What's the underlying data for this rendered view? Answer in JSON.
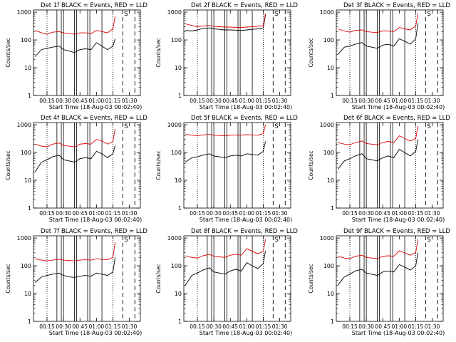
{
  "colors": {
    "events": "#000000",
    "lld": "#dd0000",
    "axes": "#000000"
  },
  "common": {
    "xlabel": "Start Time (18-Aug-03 00:02:40)",
    "ylabel": "Counts/sec",
    "x_tick_labels": [
      "00:15",
      "00:30",
      "00:45",
      "01:00",
      "01:15",
      "01:30"
    ],
    "y_tick_labels": [
      "1",
      "10",
      "100",
      "1000"
    ],
    "corner_label": "S"
  },
  "chart_data": [
    {
      "type": "line",
      "title": "Det 1f BLACK = Events, RED = LLD",
      "yscale": "log",
      "ylim": [
        1,
        1200
      ],
      "xlim": [
        "00:02:40",
        "01:40:00"
      ],
      "x": [
        "00:04",
        "00:10",
        "00:15",
        "00:20",
        "00:26",
        "00:30",
        "00:35",
        "00:40",
        "00:45",
        "00:50",
        "00:55",
        "01:00",
        "01:05",
        "01:10",
        "01:15",
        "01:17"
      ],
      "series": [
        {
          "name": "BLACK = Events",
          "values": [
            25,
            45,
            50,
            55,
            60,
            45,
            40,
            35,
            45,
            48,
            45,
            80,
            60,
            45,
            60,
            110
          ]
        },
        {
          "name": "RED = LLD",
          "values": [
            220,
            180,
            160,
            190,
            200,
            180,
            170,
            160,
            180,
            180,
            170,
            220,
            200,
            180,
            250,
            700
          ]
        }
      ],
      "dotted_lines_at": [
        "00:15",
        "01:15"
      ],
      "solid_lines_at": [
        "00:24",
        "00:28",
        "00:30",
        "00:40",
        "00:42",
        "00:52",
        "00:54",
        "01:05"
      ],
      "dashed_lines_at": [
        "01:24",
        "01:35"
      ]
    },
    {
      "type": "line",
      "title": "Det 2f BLACK = Events, RED = LLD",
      "yscale": "log",
      "ylim": [
        1,
        1200
      ],
      "xlim": [
        "00:02:40",
        "01:40:00"
      ],
      "x": [
        "00:04",
        "00:10",
        "00:15",
        "00:20",
        "00:26",
        "00:30",
        "00:35",
        "00:40",
        "00:45",
        "00:50",
        "00:55",
        "01:00",
        "01:05",
        "01:10",
        "01:15",
        "01:17"
      ],
      "series": [
        {
          "name": "BLACK = Events",
          "values": [
            220,
            210,
            230,
            260,
            270,
            250,
            240,
            230,
            230,
            225,
            220,
            230,
            240,
            250,
            270,
            800
          ]
        },
        {
          "name": "RED = LLD",
          "values": [
            380,
            330,
            300,
            320,
            330,
            310,
            300,
            290,
            290,
            280,
            280,
            290,
            300,
            310,
            330,
            900
          ]
        }
      ],
      "dotted_lines_at": [
        "00:15",
        "01:15"
      ],
      "solid_lines_at": [
        "00:24",
        "00:28",
        "00:30",
        "00:40",
        "00:42",
        "00:52",
        "00:54",
        "01:05"
      ],
      "dashed_lines_at": [
        "01:24",
        "01:35"
      ]
    },
    {
      "type": "line",
      "title": "Det 3f BLACK = Events, RED = LLD",
      "yscale": "log",
      "ylim": [
        1,
        1200
      ],
      "xlim": [
        "00:02:40",
        "01:40:00"
      ],
      "x": [
        "00:04",
        "00:10",
        "00:15",
        "00:20",
        "00:26",
        "00:30",
        "00:35",
        "00:40",
        "00:45",
        "00:50",
        "00:55",
        "01:00",
        "01:05",
        "01:10",
        "01:15",
        "01:17"
      ],
      "series": [
        {
          "name": "BLACK = Events",
          "values": [
            30,
            55,
            60,
            70,
            80,
            60,
            55,
            50,
            65,
            70,
            60,
            110,
            90,
            70,
            110,
            400
          ]
        },
        {
          "name": "RED = LLD",
          "values": [
            250,
            210,
            190,
            220,
            230,
            200,
            190,
            185,
            210,
            210,
            200,
            280,
            250,
            230,
            320,
            900
          ]
        }
      ],
      "dotted_lines_at": [
        "00:15",
        "01:15"
      ],
      "solid_lines_at": [
        "00:24",
        "00:28",
        "00:30",
        "00:40",
        "00:42",
        "00:52",
        "00:54",
        "01:05"
      ],
      "dashed_lines_at": [
        "01:24",
        "01:35"
      ]
    },
    {
      "type": "line",
      "title": "Det 4f BLACK = Events, RED = LLD",
      "yscale": "log",
      "ylim": [
        1,
        1200
      ],
      "xlim": [
        "00:02:40",
        "01:40:00"
      ],
      "x": [
        "00:04",
        "00:10",
        "00:15",
        "00:20",
        "00:26",
        "00:30",
        "00:35",
        "00:40",
        "00:45",
        "00:50",
        "00:55",
        "01:00",
        "01:05",
        "01:10",
        "01:15",
        "01:17"
      ],
      "series": [
        {
          "name": "BLACK = Events",
          "values": [
            20,
            45,
            55,
            70,
            80,
            55,
            50,
            45,
            60,
            65,
            60,
            110,
            90,
            65,
            90,
            180
          ]
        },
        {
          "name": "RED = LLD",
          "values": [
            200,
            170,
            160,
            200,
            220,
            180,
            170,
            160,
            200,
            210,
            200,
            300,
            260,
            200,
            250,
            700
          ]
        }
      ],
      "dotted_lines_at": [
        "00:15",
        "01:15"
      ],
      "solid_lines_at": [
        "00:24",
        "00:28",
        "00:30",
        "00:40",
        "00:42",
        "00:52",
        "00:54",
        "01:05"
      ],
      "dashed_lines_at": [
        "01:24",
        "01:35"
      ]
    },
    {
      "type": "line",
      "title": "Det 5f BLACK = Events, RED = LLD",
      "yscale": "log",
      "ylim": [
        1,
        1200
      ],
      "xlim": [
        "00:02:40",
        "01:40:00"
      ],
      "x": [
        "00:04",
        "00:10",
        "00:15",
        "00:20",
        "00:26",
        "00:30",
        "00:35",
        "00:40",
        "00:45",
        "00:50",
        "00:55",
        "01:00",
        "01:05",
        "01:10",
        "01:15",
        "01:17"
      ],
      "series": [
        {
          "name": "BLACK = Events",
          "values": [
            45,
            65,
            70,
            80,
            90,
            75,
            70,
            65,
            75,
            80,
            75,
            90,
            85,
            80,
            110,
            250
          ]
        },
        {
          "name": "RED = LLD",
          "values": [
            450,
            420,
            400,
            430,
            450,
            420,
            410,
            400,
            420,
            430,
            420,
            440,
            430,
            420,
            480,
            1000
          ]
        }
      ],
      "dotted_lines_at": [
        "00:15",
        "01:15"
      ],
      "solid_lines_at": [
        "00:24",
        "00:28",
        "00:30",
        "00:40",
        "00:42",
        "00:52",
        "00:54",
        "01:05"
      ],
      "dashed_lines_at": [
        "01:24",
        "01:35"
      ]
    },
    {
      "type": "line",
      "title": "Det 6f BLACK = Events, RED = LLD",
      "yscale": "log",
      "ylim": [
        1,
        1200
      ],
      "xlim": [
        "00:02:40",
        "01:40:00"
      ],
      "x": [
        "00:04",
        "00:10",
        "00:15",
        "00:20",
        "00:26",
        "00:30",
        "00:35",
        "00:40",
        "00:45",
        "00:50",
        "00:55",
        "01:00",
        "01:05",
        "01:10",
        "01:15",
        "01:17"
      ],
      "series": [
        {
          "name": "BLACK = Events",
          "values": [
            25,
            50,
            60,
            75,
            90,
            60,
            55,
            50,
            65,
            75,
            65,
            130,
            100,
            75,
            110,
            300
          ]
        },
        {
          "name": "RED = LLD",
          "values": [
            230,
            200,
            190,
            230,
            260,
            210,
            200,
            190,
            230,
            250,
            230,
            400,
            320,
            260,
            320,
            900
          ]
        }
      ],
      "dotted_lines_at": [
        "00:15",
        "01:15"
      ],
      "solid_lines_at": [
        "00:24",
        "00:28",
        "00:30",
        "00:40",
        "00:42",
        "00:52",
        "00:54",
        "01:05"
      ],
      "dashed_lines_at": [
        "01:24",
        "01:35"
      ]
    },
    {
      "type": "line",
      "title": "Det 7f BLACK = Events, RED = LLD",
      "yscale": "log",
      "ylim": [
        1,
        1200
      ],
      "xlim": [
        "00:02:40",
        "01:40:00"
      ],
      "x": [
        "00:04",
        "00:10",
        "00:15",
        "00:20",
        "00:26",
        "00:30",
        "00:35",
        "00:40",
        "00:45",
        "00:50",
        "00:55",
        "01:00",
        "01:05",
        "01:10",
        "01:15",
        "01:17"
      ],
      "series": [
        {
          "name": "BLACK = Events",
          "values": [
            25,
            40,
            45,
            50,
            55,
            45,
            40,
            38,
            42,
            45,
            42,
            55,
            50,
            45,
            60,
            200
          ]
        },
        {
          "name": "RED = LLD",
          "values": [
            180,
            160,
            150,
            160,
            170,
            160,
            155,
            150,
            160,
            165,
            160,
            180,
            170,
            165,
            200,
            700
          ]
        }
      ],
      "dotted_lines_at": [
        "00:15",
        "01:15"
      ],
      "solid_lines_at": [
        "00:24",
        "00:28",
        "00:30",
        "00:40",
        "00:42",
        "00:52",
        "00:54",
        "01:05"
      ],
      "dashed_lines_at": [
        "01:24",
        "01:35"
      ]
    },
    {
      "type": "line",
      "title": "Det 8f BLACK = Events, RED = LLD",
      "yscale": "log",
      "ylim": [
        1,
        1200
      ],
      "xlim": [
        "00:02:40",
        "01:40:00"
      ],
      "x": [
        "00:04",
        "00:10",
        "00:15",
        "00:20",
        "00:26",
        "00:30",
        "00:35",
        "00:40",
        "00:45",
        "00:50",
        "00:55",
        "01:00",
        "01:05",
        "01:10",
        "01:15",
        "01:17"
      ],
      "series": [
        {
          "name": "BLACK = Events",
          "values": [
            20,
            45,
            55,
            70,
            85,
            60,
            55,
            50,
            65,
            75,
            65,
            130,
            100,
            80,
            120,
            350
          ]
        },
        {
          "name": "RED = LLD",
          "values": [
            230,
            200,
            190,
            230,
            260,
            220,
            210,
            200,
            240,
            260,
            240,
            420,
            330,
            270,
            330,
            900
          ]
        }
      ],
      "dotted_lines_at": [
        "00:15",
        "01:15"
      ],
      "solid_lines_at": [
        "00:24",
        "00:28",
        "00:30",
        "00:40",
        "00:42",
        "00:52",
        "00:54",
        "01:05"
      ],
      "dashed_lines_at": [
        "01:24",
        "01:35"
      ]
    },
    {
      "type": "line",
      "title": "Det 9f BLACK = Events, RED = LLD",
      "yscale": "log",
      "ylim": [
        1,
        1200
      ],
      "xlim": [
        "00:02:40",
        "01:40:00"
      ],
      "x": [
        "00:04",
        "00:10",
        "00:15",
        "00:20",
        "00:26",
        "00:30",
        "00:35",
        "00:40",
        "00:45",
        "00:50",
        "00:55",
        "01:00",
        "01:05",
        "01:10",
        "01:15",
        "01:17"
      ],
      "series": [
        {
          "name": "BLACK = Events",
          "values": [
            20,
            40,
            50,
            65,
            75,
            55,
            50,
            45,
            60,
            65,
            60,
            110,
            90,
            70,
            100,
            300
          ]
        },
        {
          "name": "RED = LLD",
          "values": [
            220,
            190,
            180,
            220,
            240,
            200,
            190,
            180,
            220,
            230,
            220,
            350,
            290,
            240,
            300,
            900
          ]
        }
      ],
      "dotted_lines_at": [
        "00:15",
        "01:15"
      ],
      "solid_lines_at": [
        "00:24",
        "00:28",
        "00:30",
        "00:40",
        "00:42",
        "00:52",
        "00:54",
        "01:05"
      ],
      "dashed_lines_at": [
        "01:24",
        "01:35"
      ]
    }
  ]
}
